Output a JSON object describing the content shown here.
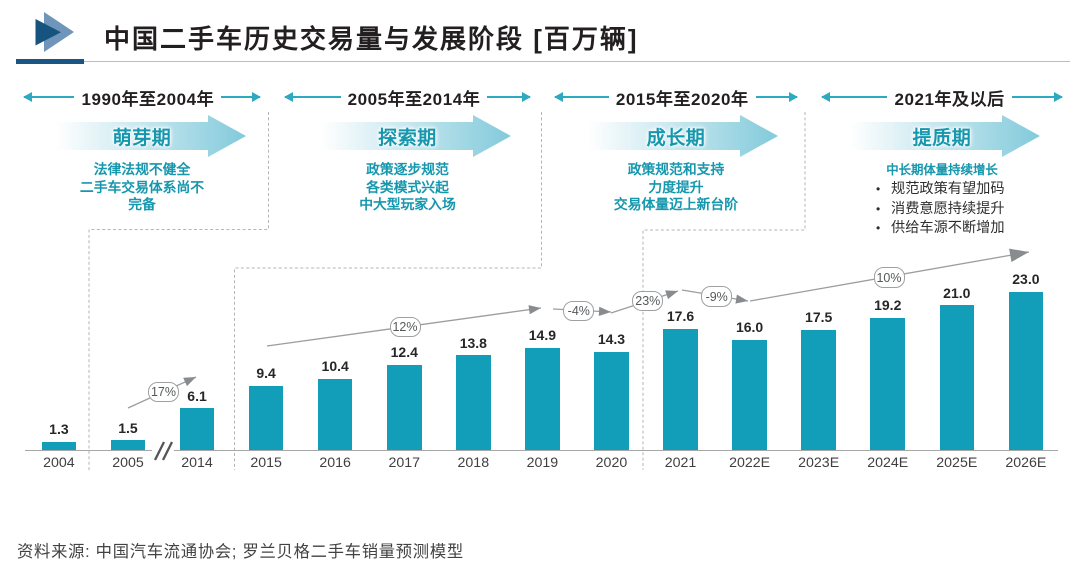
{
  "title": "中国二手车历史交易量与发展阶段 [百万辆]",
  "source_note": "资料来源: 中国汽车流通协会; 罗兰贝格二手车销量预测模型",
  "colors": {
    "ink": "#231f20",
    "teal_text": "#1697ad",
    "teal_header_arrow": "#2eaac0",
    "bar": "#129eb9",
    "navy": "#1a5583",
    "rule_blue": "#a9c0dc",
    "logo_light": "#7095ba",
    "logo_dark": "#17537f",
    "stage_arrow_fill": "#82cadb",
    "trend_gray": "#9b9da0",
    "dash_gray": "#b5b5b5"
  },
  "periods": [
    {
      "range": "1990年至2004年",
      "stage": "萌芽期",
      "desc": [
        "法律法规不健全",
        "二手车交易体系尚不",
        "完备"
      ]
    },
    {
      "range": "2005年至2014年",
      "stage": "探索期",
      "desc": [
        "政策逐步规范",
        "各类模式兴起",
        "中大型玩家入场"
      ]
    },
    {
      "range": "2015年至2020年",
      "stage": "成长期",
      "desc": [
        "政策规范和支持",
        "力度提升",
        "交易体量迈上新台阶"
      ]
    },
    {
      "range": "2021年及以后",
      "stage": "提质期",
      "headline": "中长期体量持续增长",
      "bullets": [
        "规范政策有望加码",
        "消费意愿持续提升",
        "供给车源不断增加"
      ]
    }
  ],
  "chart_data": {
    "type": "bar",
    "title": "中国二手车历史交易量与发展阶段",
    "unit": "百万辆",
    "categories": [
      "2004",
      "2005",
      "2014",
      "2015",
      "2016",
      "2017",
      "2018",
      "2019",
      "2020",
      "2021",
      "2022E",
      "2023E",
      "2024E",
      "2025E",
      "2026E"
    ],
    "values": [
      1.3,
      1.5,
      6.1,
      9.4,
      10.4,
      12.4,
      13.8,
      14.9,
      14.3,
      17.6,
      16.0,
      17.5,
      19.2,
      21.0,
      23.0
    ],
    "growth_labels": [
      "17%",
      "12%",
      "-4%",
      "23%",
      "-9%",
      "10%"
    ],
    "axis_break_between": [
      "2005",
      "2014"
    ],
    "legend": null,
    "grid": false
  }
}
